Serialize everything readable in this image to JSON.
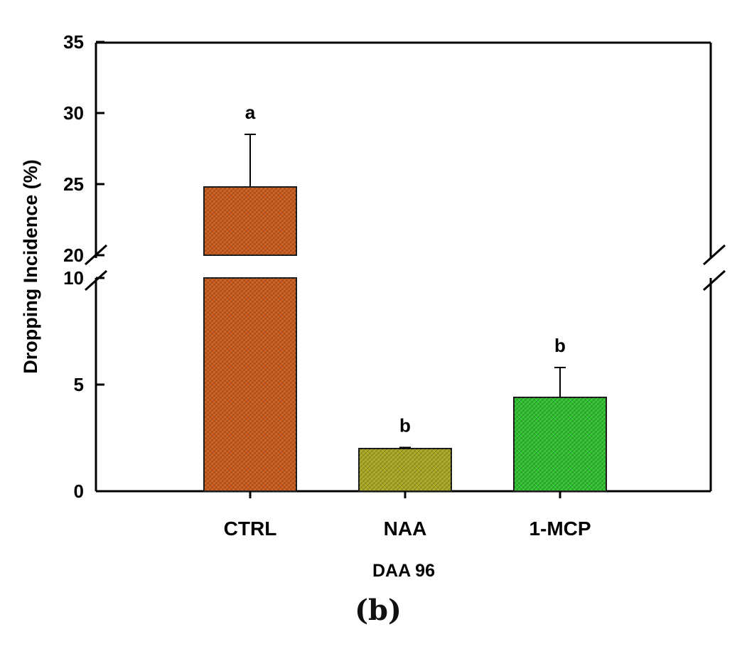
{
  "chart_data": {
    "type": "bar",
    "categories": [
      "CTRL",
      "NAA",
      "1-MCP"
    ],
    "values": [
      24.8,
      2.0,
      4.4
    ],
    "errors": [
      3.7,
      0.05,
      1.4
    ],
    "significance": [
      "a",
      "b",
      "b"
    ],
    "colors": [
      "#c85a1e",
      "#a8a622",
      "#2fbf2f"
    ],
    "ylabel": "Dropping Incidence (%)",
    "xlabel": "DAA 96",
    "ylim": [
      0,
      35
    ],
    "axis_break": [
      10,
      20
    ],
    "y_ticks_lower": [
      0,
      5,
      10
    ],
    "y_ticks_upper": [
      20,
      25,
      30,
      35
    ],
    "grid": false,
    "legend": "none"
  },
  "panel_label": "(b)"
}
